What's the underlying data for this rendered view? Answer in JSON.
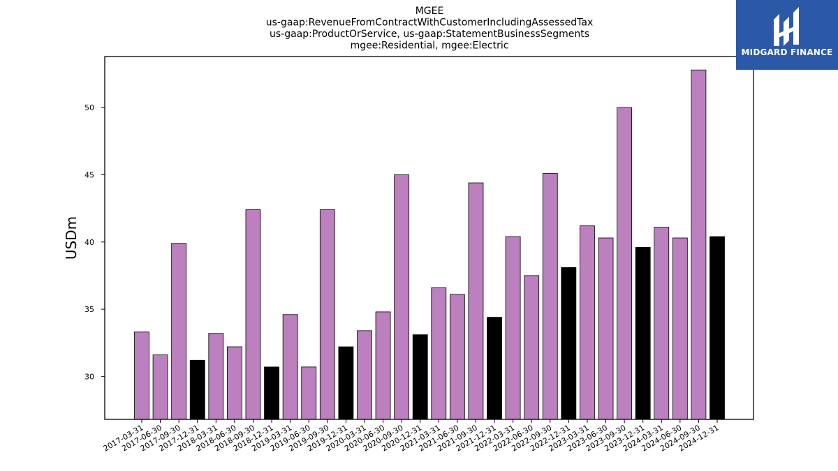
{
  "chart_data": {
    "type": "bar",
    "title": [
      "MGEE",
      "us-gaap:RevenueFromContractWithCustomerIncludingAssessedTax",
      "us-gaap:ProductOrService, us-gaap:StatementBusinessSegments",
      "mgee:Residential, mgee:Electric"
    ],
    "xlabel": "",
    "ylabel": "USDm",
    "ylim": [
      26.8,
      53.8
    ],
    "yticks": [
      30,
      35,
      40,
      45,
      50
    ],
    "categories": [
      "2017-03-31",
      "2017-06-30",
      "2017-09-30",
      "2017-12-31",
      "2018-03-31",
      "2018-06-30",
      "2018-09-30",
      "2018-12-31",
      "2019-03-31",
      "2019-06-30",
      "2019-09-30",
      "2019-12-31",
      "2020-03-31",
      "2020-06-30",
      "2020-09-30",
      "2020-12-31",
      "2021-03-31",
      "2021-06-30",
      "2021-09-30",
      "2021-12-31",
      "2022-03-31",
      "2022-06-30",
      "2022-09-30",
      "2022-12-31",
      "2023-03-31",
      "2023-06-30",
      "2023-09-30",
      "2023-12-31",
      "2024-03-31",
      "2024-06-30",
      "2024-09-30",
      "2024-12-31"
    ],
    "values": [
      33.3,
      31.6,
      39.9,
      31.2,
      33.2,
      32.2,
      42.4,
      30.7,
      34.6,
      30.7,
      42.4,
      32.2,
      33.4,
      34.8,
      45.0,
      33.1,
      36.6,
      36.1,
      44.4,
      34.4,
      40.4,
      37.5,
      45.1,
      38.1,
      41.2,
      40.3,
      50.0,
      39.6,
      41.1,
      40.3,
      52.8,
      40.4
    ],
    "colors": {
      "quarter": "#bb80bd",
      "year_end": "#000000"
    },
    "grid": false,
    "legend": "none"
  },
  "logo": {
    "text": "MIDGARD FINANCE"
  }
}
